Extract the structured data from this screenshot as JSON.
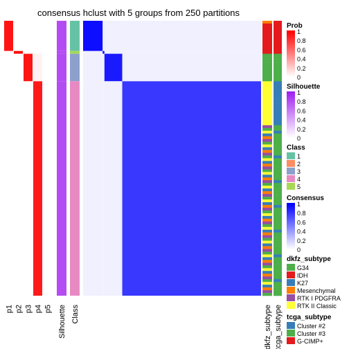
{
  "chart_data": {
    "type": "heatmap",
    "title": "consensus hclust with 5 groups from 250 partitions",
    "n_samples": 100,
    "colors": {
      "class": {
        "1": "#66C2A5",
        "2": "#FC8D62",
        "3": "#8DA0CB",
        "4": "#E78AC3",
        "5": "#A6D854"
      },
      "dkfz": {
        "G34": "#4DAF4A",
        "IDH": "#E41A1C",
        "K27": "#377EB8",
        "Mesenchymal": "#FF7F00",
        "RTK I PDGFRA": "#984EA3",
        "RTK II Classic": "#FFFF33"
      },
      "tcga": {
        "Cluster #2": "#377EB8",
        "Cluster #3": "#4DAF4A",
        "G-CIMP+": "#E41A1C"
      },
      "consensus_high": "#0000FF",
      "prob_high": "#FF0000",
      "silhouette_high": "#A020F0"
    },
    "groups": [
      {
        "class": "1",
        "n": 11,
        "p": [
          0.92,
          0.0,
          0.0,
          0.0,
          0.0
        ],
        "consensus_within": 0.95
      },
      {
        "class": "5",
        "n": 1,
        "p": [
          0.0,
          1.0,
          0.0,
          0.0,
          0.0
        ],
        "consensus_within": 1.0
      },
      {
        "class": "3",
        "n": 10,
        "p": [
          0.0,
          0.0,
          0.92,
          0.05,
          0.0
        ],
        "consensus_within": 0.9
      },
      {
        "class": "4",
        "n": 78,
        "p": [
          0.0,
          0.0,
          0.0,
          0.9,
          0.0
        ],
        "consensus_within": 0.78
      }
    ],
    "consensus_between": 0.06,
    "columns": {
      "p_labels": [
        "p1",
        "p2",
        "p3",
        "p4",
        "p5"
      ],
      "silhouette": "Silhouette",
      "class": "Class",
      "dkfz": "dkfz_subtype",
      "tcga": "tcga_subtype"
    },
    "legends": [
      {
        "title": "Prob",
        "kind": "gradient",
        "colors": [
          "#FFFFFF",
          "#FF0000"
        ],
        "ticks": [
          "1",
          "0.8",
          "0.6",
          "0.4",
          "0.2",
          "0"
        ]
      },
      {
        "title": "Silhouette",
        "kind": "gradient",
        "colors": [
          "#FFFFFF",
          "#A020F0"
        ],
        "ticks": [
          "1",
          "0.8",
          "0.6",
          "0.4",
          "0.2",
          "0"
        ]
      },
      {
        "title": "Class",
        "kind": "discrete",
        "items": [
          "1",
          "2",
          "3",
          "4",
          "5"
        ]
      },
      {
        "title": "Consensus",
        "kind": "gradient",
        "colors": [
          "#FFFFFF",
          "#0000FF"
        ],
        "ticks": [
          "1",
          "0.8",
          "0.6",
          "0.4",
          "0.2",
          "0"
        ]
      },
      {
        "title": "dkfz_subtype",
        "kind": "discrete",
        "items": [
          "G34",
          "IDH",
          "K27",
          "Mesenchymal",
          "RTK I PDGFRA",
          "RTK II Classic"
        ]
      },
      {
        "title": "tcga_subtype",
        "kind": "discrete",
        "items": [
          "Cluster #2",
          "Cluster #3",
          "G-CIMP+"
        ]
      }
    ]
  }
}
